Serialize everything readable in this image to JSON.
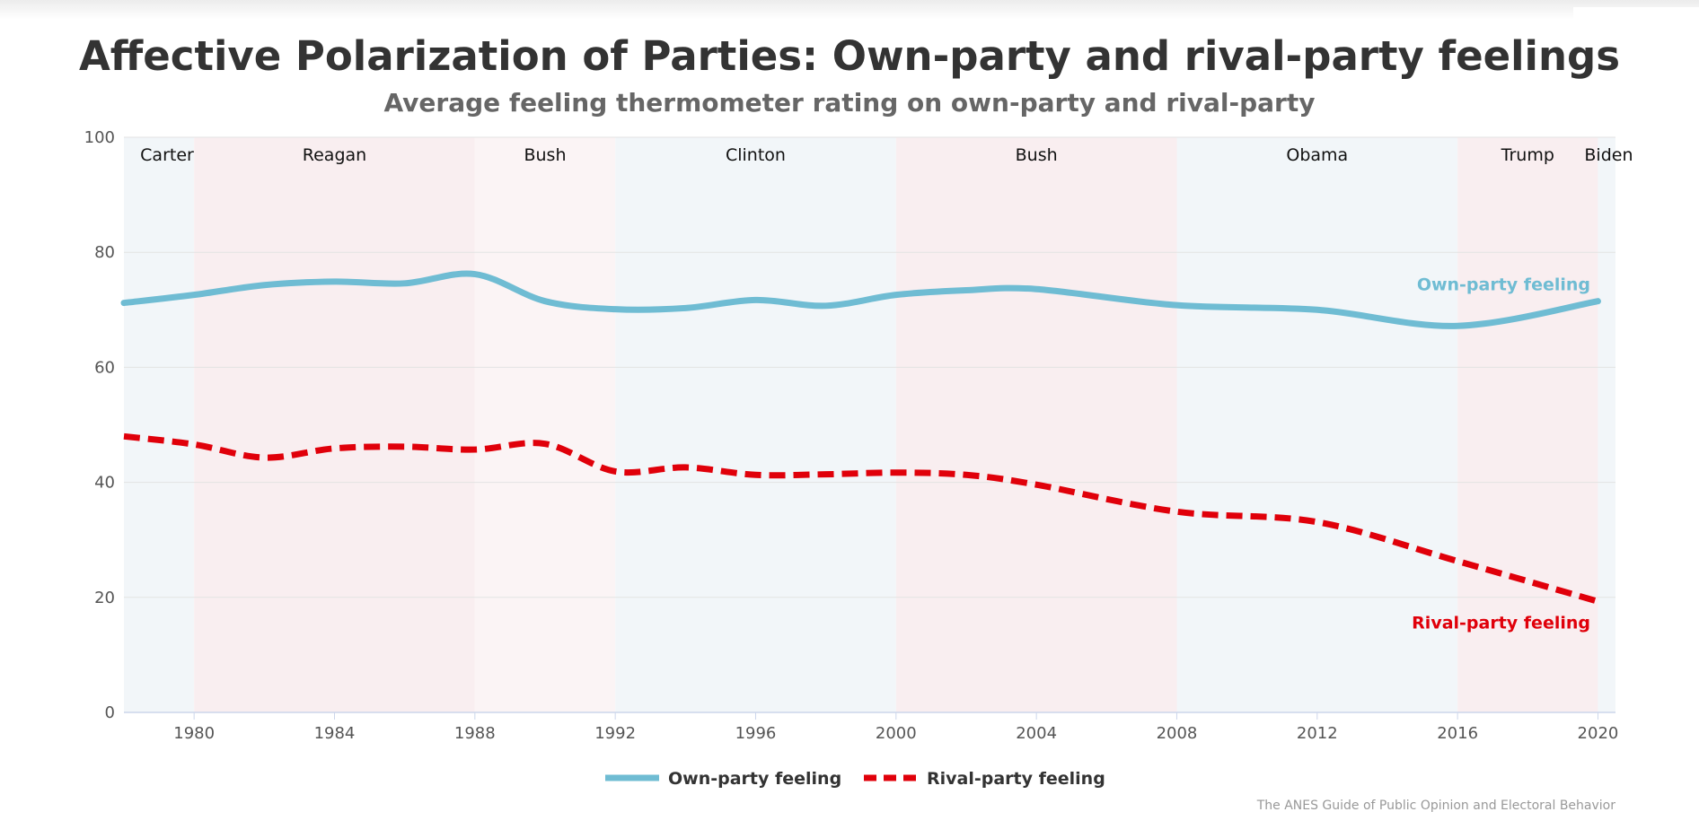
{
  "colors": {
    "own_party": "#6fbcd3",
    "rival_party": "#e0000a",
    "democrat_band": "#f2f6f9",
    "republican_band": "#f9eef0",
    "republican_band_light": "#fbf4f5",
    "gridline": "#e3e3e3",
    "axis": "#ccd6eb"
  },
  "chart_data": {
    "type": "line",
    "title": "Affective Polarization of Parties: Own-party and rival-party feelings",
    "subtitle": "Average feeling thermometer rating on own-party and rival-party",
    "xlabel": "",
    "ylabel": "",
    "xlim": [
      1978,
      2020.5
    ],
    "ylim": [
      0,
      100
    ],
    "x_ticks": [
      1980,
      1984,
      1988,
      1992,
      1996,
      2000,
      2004,
      2008,
      2012,
      2016,
      2020
    ],
    "y_ticks": [
      0,
      20,
      40,
      60,
      80,
      100
    ],
    "grid": true,
    "legend_position": "bottom-center",
    "series": [
      {
        "name": "Own-party feeling",
        "style": "solid",
        "color": "own_party",
        "end_label": "Own-party feeling",
        "x": [
          1978,
          1980,
          1982,
          1984,
          1986,
          1988,
          1990,
          1992,
          1994,
          1996,
          1998,
          2000,
          2002,
          2004,
          2008,
          2012,
          2016,
          2020
        ],
        "y": [
          71.2,
          72.6,
          74.3,
          74.9,
          74.6,
          76.2,
          71.5,
          70.1,
          70.3,
          71.7,
          70.7,
          72.6,
          73.4,
          73.6,
          70.8,
          70.0,
          67.2,
          71.5
        ]
      },
      {
        "name": "Rival-party feeling",
        "style": "dashed",
        "color": "rival_party",
        "end_label": "Rival-party feeling",
        "x": [
          1978,
          1980,
          1982,
          1984,
          1986,
          1988,
          1990,
          1992,
          1994,
          1996,
          1998,
          2000,
          2002,
          2004,
          2008,
          2012,
          2016,
          2020
        ],
        "y": [
          48.0,
          46.6,
          44.3,
          45.9,
          46.2,
          45.7,
          46.7,
          41.9,
          42.6,
          41.3,
          41.4,
          41.7,
          41.3,
          39.6,
          34.9,
          33.1,
          26.3,
          19.3
        ]
      }
    ],
    "presidencies": [
      {
        "name": "Carter",
        "start": 1978,
        "end": 1980,
        "party": "D"
      },
      {
        "name": "Reagan",
        "start": 1980,
        "end": 1988,
        "party": "R"
      },
      {
        "name": "Bush",
        "start": 1988,
        "end": 1992,
        "party": "R2"
      },
      {
        "name": "Clinton",
        "start": 1992,
        "end": 2000,
        "party": "D"
      },
      {
        "name": "Bush",
        "start": 2000,
        "end": 2008,
        "party": "R"
      },
      {
        "name": "Obama",
        "start": 2008,
        "end": 2016,
        "party": "D"
      },
      {
        "name": "Trump",
        "start": 2016,
        "end": 2020,
        "party": "R"
      },
      {
        "name": "Biden",
        "start": 2020,
        "end": 2020.5,
        "party": "D"
      }
    ],
    "credit": "The ANES Guide of Public Opinion and Electoral Behavior"
  }
}
